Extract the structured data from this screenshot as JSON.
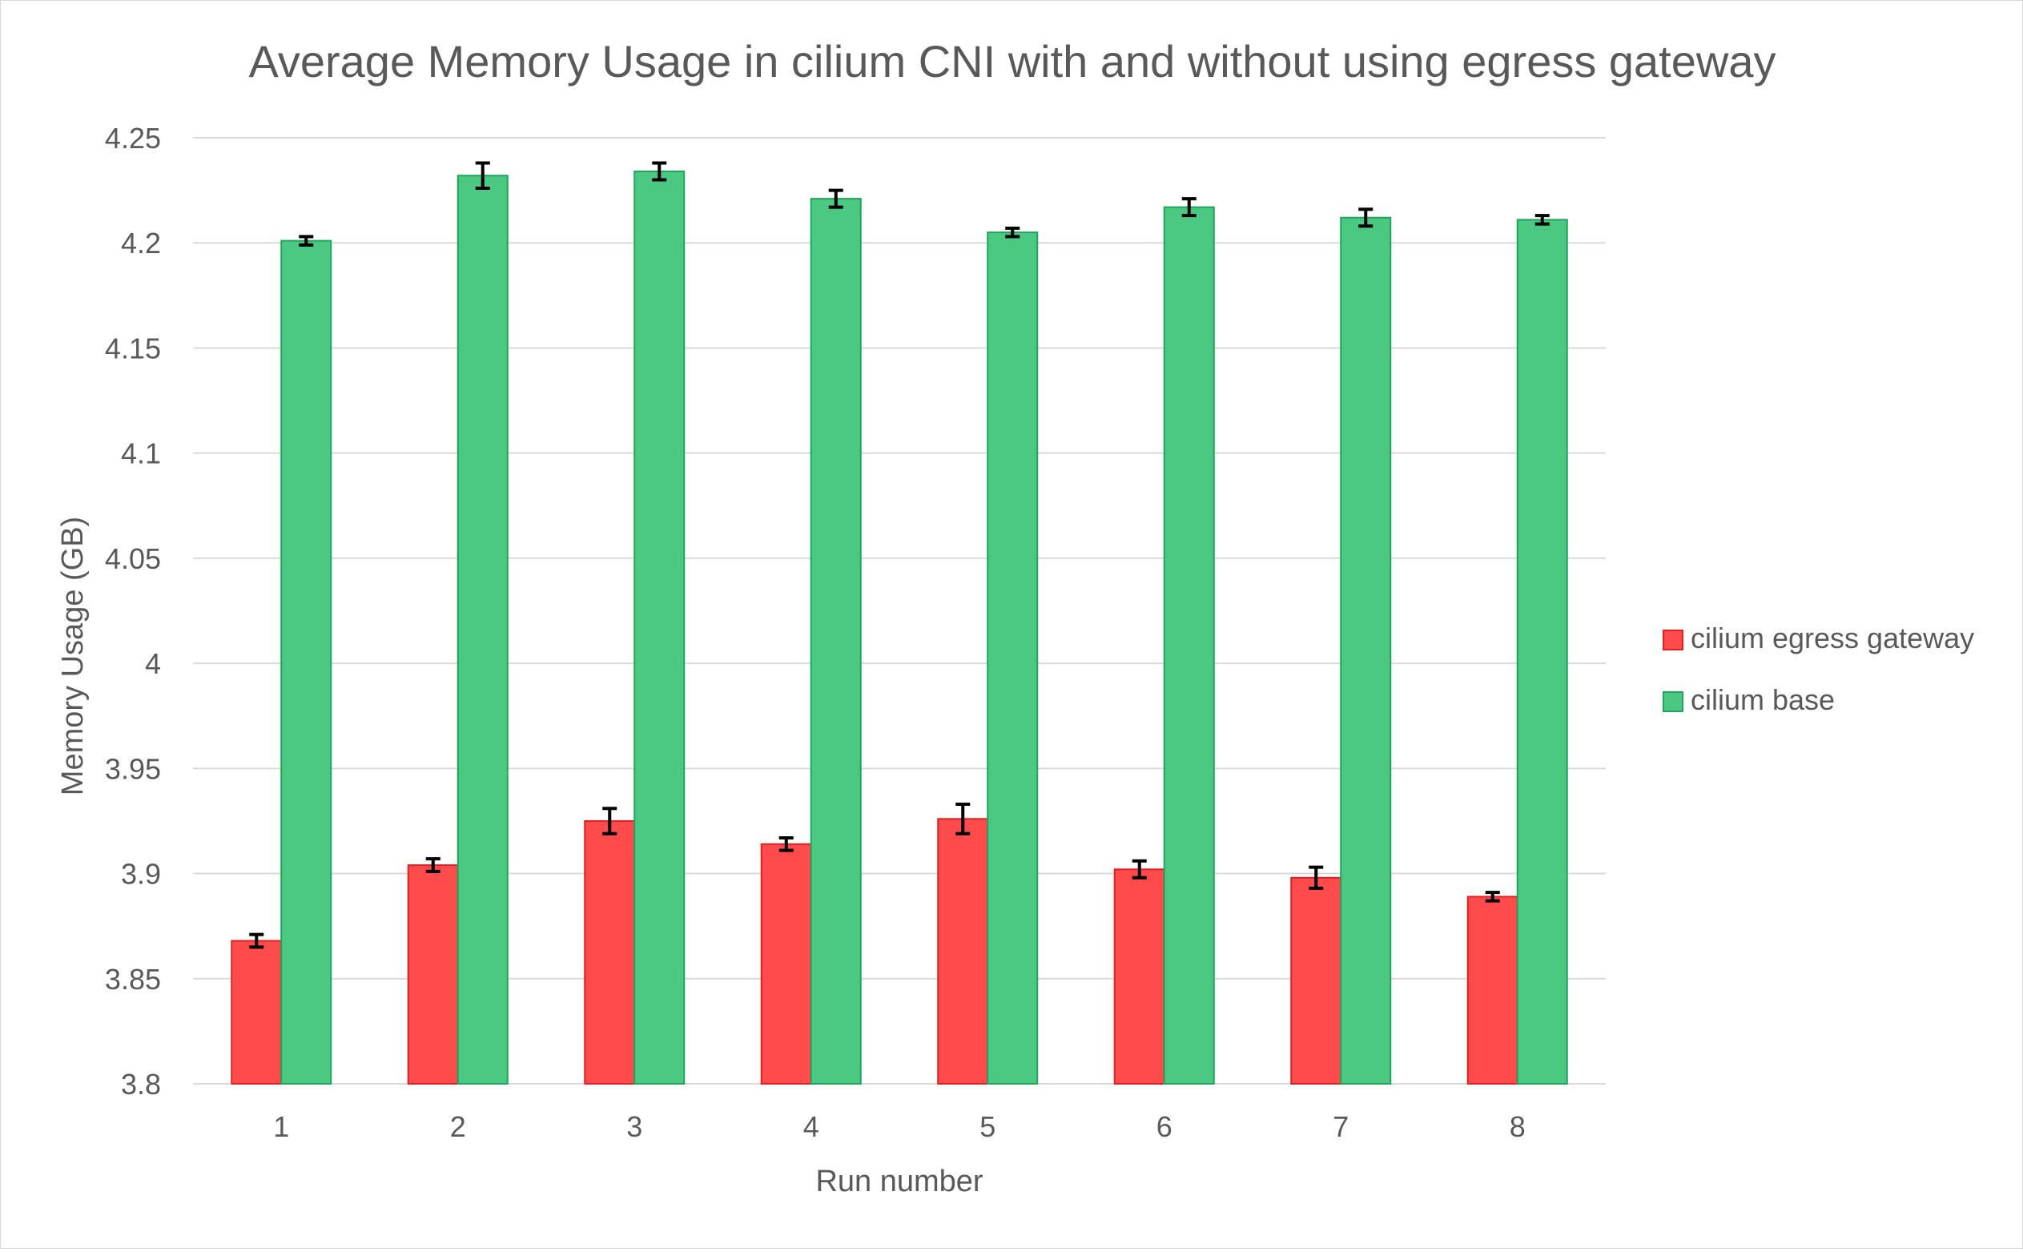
{
  "chart_data": {
    "type": "bar",
    "title": "Average Memory Usage in cilium CNI with and without using egress gateway",
    "xlabel": "Run number",
    "ylabel": "Memory Usage (GB)",
    "ylim": [
      3.8,
      4.25
    ],
    "yticks": [
      3.8,
      3.85,
      3.9,
      3.95,
      4,
      4.05,
      4.1,
      4.15,
      4.2,
      4.25
    ],
    "ytick_labels": [
      "3.8",
      "3.85",
      "3.9",
      "3.95",
      "4",
      "4.05",
      "4.1",
      "4.15",
      "4.2",
      "4.25"
    ],
    "grid": true,
    "legend_position": "right",
    "categories": [
      "1",
      "2",
      "3",
      "4",
      "5",
      "6",
      "7",
      "8"
    ],
    "series": [
      {
        "name": "cilium egress gateway",
        "color": "#ff4b4b",
        "edge": "#e02020",
        "values": [
          3.868,
          3.904,
          3.925,
          3.914,
          3.926,
          3.902,
          3.898,
          3.889
        ],
        "errors": [
          0.003,
          0.003,
          0.006,
          0.003,
          0.007,
          0.004,
          0.005,
          0.002
        ]
      },
      {
        "name": "cilium base",
        "color": "#4bc882",
        "edge": "#1fa55a",
        "values": [
          4.201,
          4.232,
          4.234,
          4.221,
          4.205,
          4.217,
          4.212,
          4.211
        ],
        "errors": [
          0.002,
          0.006,
          0.004,
          0.004,
          0.002,
          0.004,
          0.004,
          0.002
        ]
      }
    ]
  }
}
